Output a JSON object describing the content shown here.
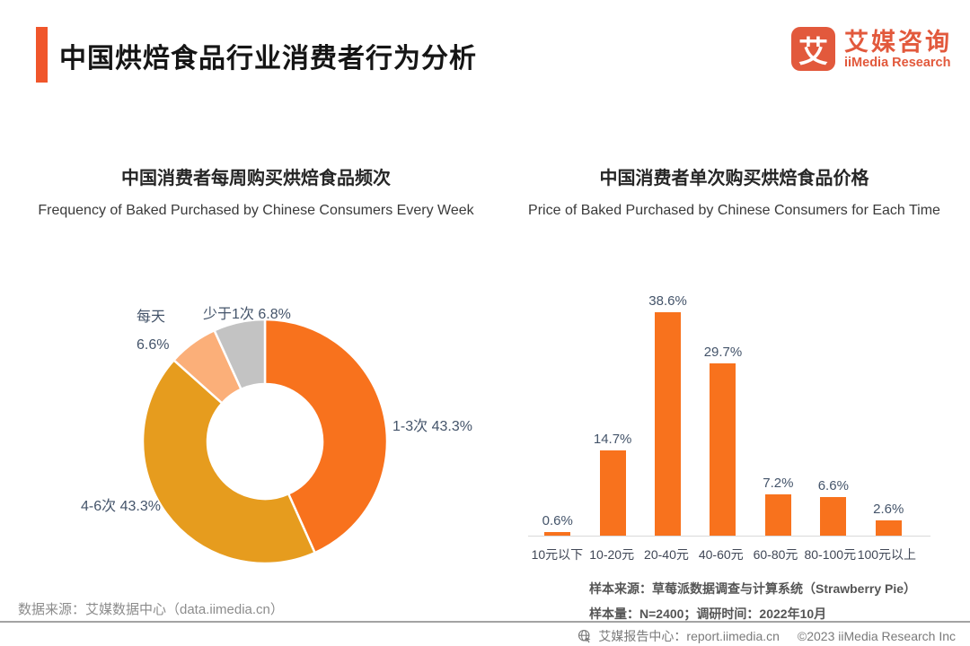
{
  "header": {
    "title": "中国烘焙食品行业消费者行为分析"
  },
  "logo": {
    "icon_text": "艾",
    "brand_cn": "艾媒咨询",
    "brand_en": "iiMedia Research"
  },
  "left_chart": {
    "title_cn": "中国消费者每周购买烘焙食品频次",
    "title_en": "Frequency of Baked Purchased by Chinese Consumers Every Week"
  },
  "right_chart": {
    "title_cn": "中国消费者单次购买烘焙食品价格",
    "title_en": "Price of Baked Purchased by Chinese Consumers for Each Time",
    "notes": [
      "样本来源：草莓派数据调查与计算系统（Strawberry Pie）",
      "样本量：N=2400；调研时间：2022年10月"
    ]
  },
  "source_note": "数据来源：艾媒数据中心（data.iimedia.cn）",
  "footer": {
    "report_center": "艾媒报告中心：report.iimedia.cn",
    "copyright": "©2023 iiMedia Research  Inc"
  },
  "colors": {
    "accent": "#F0562B",
    "brand": "#E2593C",
    "bar_orange": "#F8721D",
    "donut_orange": "#F8721D",
    "donut_amber": "#E69C1E",
    "donut_peach": "#FBAF79",
    "donut_gray": "#C3C3C3",
    "label_text": "#44546A"
  },
  "chart_data": [
    {
      "type": "pie",
      "subtype": "donut",
      "title": "中国消费者每周购买烘焙食品频次",
      "start_angle_deg": 0,
      "direction": "clockwise",
      "label_format": "{label} {value}%",
      "slices": [
        {
          "label": "1-3次",
          "value": 43.3,
          "color": "#F8721D"
        },
        {
          "label": "4-6次",
          "value": 43.3,
          "color": "#E69C1E"
        },
        {
          "label": "每天",
          "value": 6.6,
          "color": "#FBAF79"
        },
        {
          "label": "少于1次",
          "value": 6.8,
          "color": "#C3C3C3"
        }
      ]
    },
    {
      "type": "bar",
      "title": "中国消费者单次购买烘焙食品价格",
      "categories": [
        "10元以下",
        "10-20元",
        "20-40元",
        "40-60元",
        "60-80元",
        "80-100元",
        "100元以上"
      ],
      "values": [
        0.6,
        14.7,
        38.6,
        29.7,
        7.2,
        6.6,
        2.6
      ],
      "value_format": "{value}%",
      "bar_color": "#F8721D",
      "ylim": [
        0,
        40
      ],
      "y_axis_visible": false,
      "grid": false
    }
  ]
}
